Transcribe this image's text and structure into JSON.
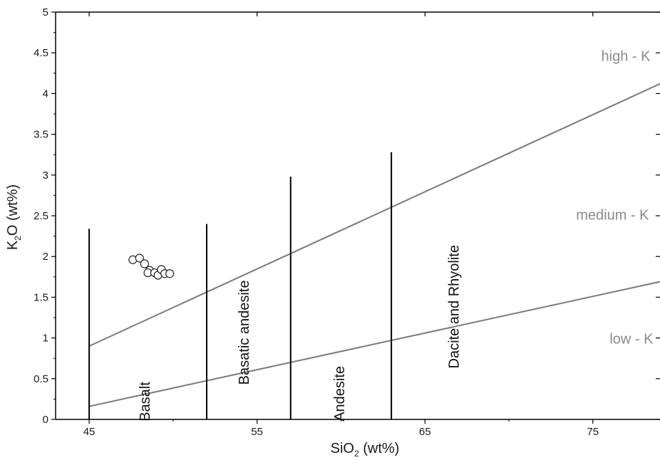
{
  "chart_data": {
    "type": "scatter",
    "x_axis": {
      "label": "SiO",
      "subscript": "2",
      "unit": " (wt%)",
      "lim": [
        43,
        79
      ],
      "ticks": [
        45,
        55,
        65,
        75
      ]
    },
    "y_axis": {
      "label_pre": "K",
      "subscript": "2",
      "label_post": "O (wt%)",
      "lim": [
        0,
        5
      ],
      "ticks": [
        0,
        0.5,
        1,
        1.5,
        2,
        2.5,
        3,
        3.5,
        4,
        4.5,
        5
      ]
    },
    "grid": false,
    "points": [
      {
        "x": 47.6,
        "y": 1.96
      },
      {
        "x": 48.0,
        "y": 1.98
      },
      {
        "x": 48.3,
        "y": 1.91
      },
      {
        "x": 48.6,
        "y": 1.83
      },
      {
        "x": 48.5,
        "y": 1.8
      },
      {
        "x": 48.9,
        "y": 1.8
      },
      {
        "x": 49.1,
        "y": 1.77
      },
      {
        "x": 49.3,
        "y": 1.84
      },
      {
        "x": 49.5,
        "y": 1.79
      },
      {
        "x": 49.8,
        "y": 1.79
      }
    ],
    "boundary_lines": [
      {
        "from": [
          45,
          0.16
        ],
        "to": [
          79,
          1.69
        ]
      },
      {
        "from": [
          45,
          0.9
        ],
        "to": [
          79,
          4.12
        ]
      }
    ],
    "field_dividers": [
      {
        "x": 45,
        "y_top": 2.34
      },
      {
        "x": 52,
        "y_top": 2.4
      },
      {
        "x": 57,
        "y_top": 2.98
      },
      {
        "x": 63,
        "y_top": 3.28
      }
    ],
    "field_labels": [
      {
        "text": "Basalt",
        "x": 48.6,
        "y": 0.5
      },
      {
        "text": "Basatic andesite",
        "x": 54.5,
        "y": 0.95
      },
      {
        "text": "Andesite",
        "x": 60.2,
        "y": 0.5
      },
      {
        "text": "Dacite and Rhyolite",
        "x": 67.0,
        "y": 1.15
      }
    ],
    "series_labels": [
      {
        "text": "high - K",
        "x": 75.5,
        "y": 4.4
      },
      {
        "text": "medium - K",
        "x": 74.0,
        "y": 2.45
      },
      {
        "text": "low - K",
        "x": 76.0,
        "y": 0.93
      }
    ],
    "colors": {
      "axis": "#000000",
      "boundary": "#7a7a7a",
      "divider": "#000000",
      "marker_edge": "#222222",
      "marker_fill": "#ffffff"
    }
  }
}
